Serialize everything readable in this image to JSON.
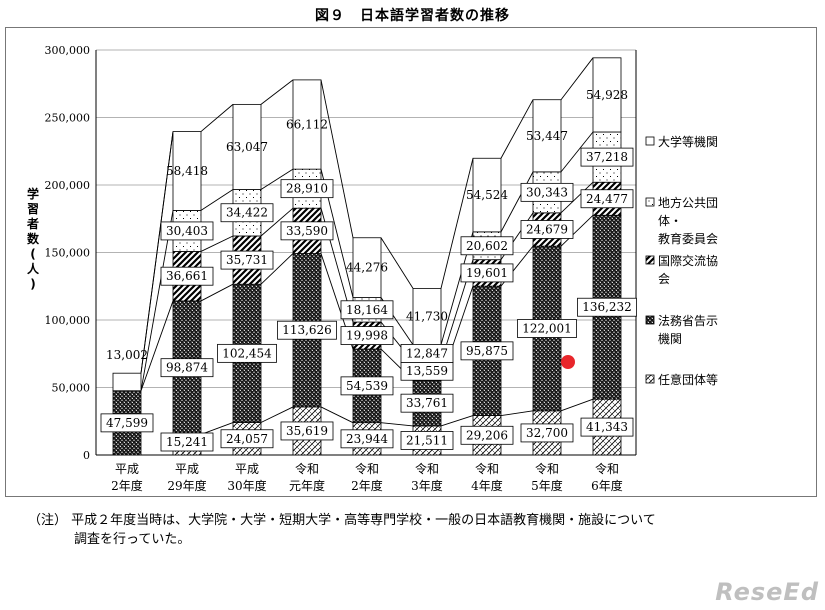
{
  "chart_data": {
    "type": "bar",
    "stacked": true,
    "title": "図９　日本語学習者数の推移",
    "ylabel": "学習者数（人）",
    "ylim": [
      0,
      300000
    ],
    "yticks": [
      "0",
      "50,000",
      "100,000",
      "150,000",
      "200,000",
      "250,000",
      "300,000"
    ],
    "grid": true,
    "legend_position": "right",
    "categories": [
      [
        "平成",
        "2年度"
      ],
      [
        "平成",
        "29年度"
      ],
      [
        "平成",
        "30年度"
      ],
      [
        "令和",
        "元年度"
      ],
      [
        "令和",
        "2年度"
      ],
      [
        "令和",
        "3年度"
      ],
      [
        "令和",
        "4年度"
      ],
      [
        "令和",
        "5年度"
      ],
      [
        "令和",
        "6年度"
      ]
    ],
    "series": [
      {
        "name": "任意団体等",
        "pattern": "diag",
        "values": [
          null,
          15241,
          24057,
          35619,
          23944,
          21511,
          29206,
          32700,
          41343
        ],
        "labels": [
          "",
          "15,241",
          "24,057",
          "35,619",
          "23,944",
          "21,511",
          "29,206",
          "32,700",
          "41,343"
        ]
      },
      {
        "name": "法務省告示機関",
        "pattern": "dense",
        "values": [
          47599,
          98874,
          102454,
          113626,
          54539,
          33761,
          95875,
          122001,
          136232
        ],
        "labels": [
          "47,599",
          "98,874",
          "102,454",
          "113,626",
          "54,539",
          "33,761",
          "95,875",
          "122,001",
          "136,232"
        ]
      },
      {
        "name": "国際交流協会",
        "pattern": "stripe",
        "values": [
          null,
          36661,
          35731,
          33590,
          19998,
          13559,
          19601,
          24679,
          24477
        ],
        "labels": [
          "",
          "36,661",
          "35,731",
          "33,590",
          "19,998",
          "13,559",
          "19,601",
          "24,679",
          "24,477"
        ]
      },
      {
        "name": "地方公共団体・教育委員会",
        "legend_lines": [
          "地方公共団",
          "体・",
          "教育委員会"
        ],
        "pattern": "dots",
        "values": [
          null,
          30403,
          34422,
          28910,
          18164,
          12847,
          20602,
          30343,
          37218
        ],
        "labels": [
          "",
          "30,403",
          "34,422",
          "28,910",
          "18,164",
          "12,847",
          "20,602",
          "30,343",
          "37,218"
        ]
      },
      {
        "name": "大学等機関",
        "pattern": "white",
        "values": [
          13002,
          58418,
          63047,
          66112,
          44276,
          41730,
          54524,
          53447,
          54928
        ],
        "labels": [
          "13,002",
          "58,418",
          "63,047",
          "66,112",
          "44,276",
          "41,730",
          "54,524",
          "53,447",
          "54,928"
        ]
      }
    ],
    "legend_lines": {
      "国際交流協会": [
        "国際交流協",
        "会"
      ],
      "法務省告示機関": [
        "法務省告示",
        "機関"
      ]
    }
  },
  "note": {
    "line1": "（注）  平成２年度当時は、大学院・大学・短期大学・高等専門学校・一般の日本語教育機関・施設について",
    "line2": "調査を行っていた。"
  },
  "watermark": "ReseEd",
  "colors": {
    "marker": "#e8262b",
    "grid": "#9a9a9a",
    "frame": "#777777"
  }
}
